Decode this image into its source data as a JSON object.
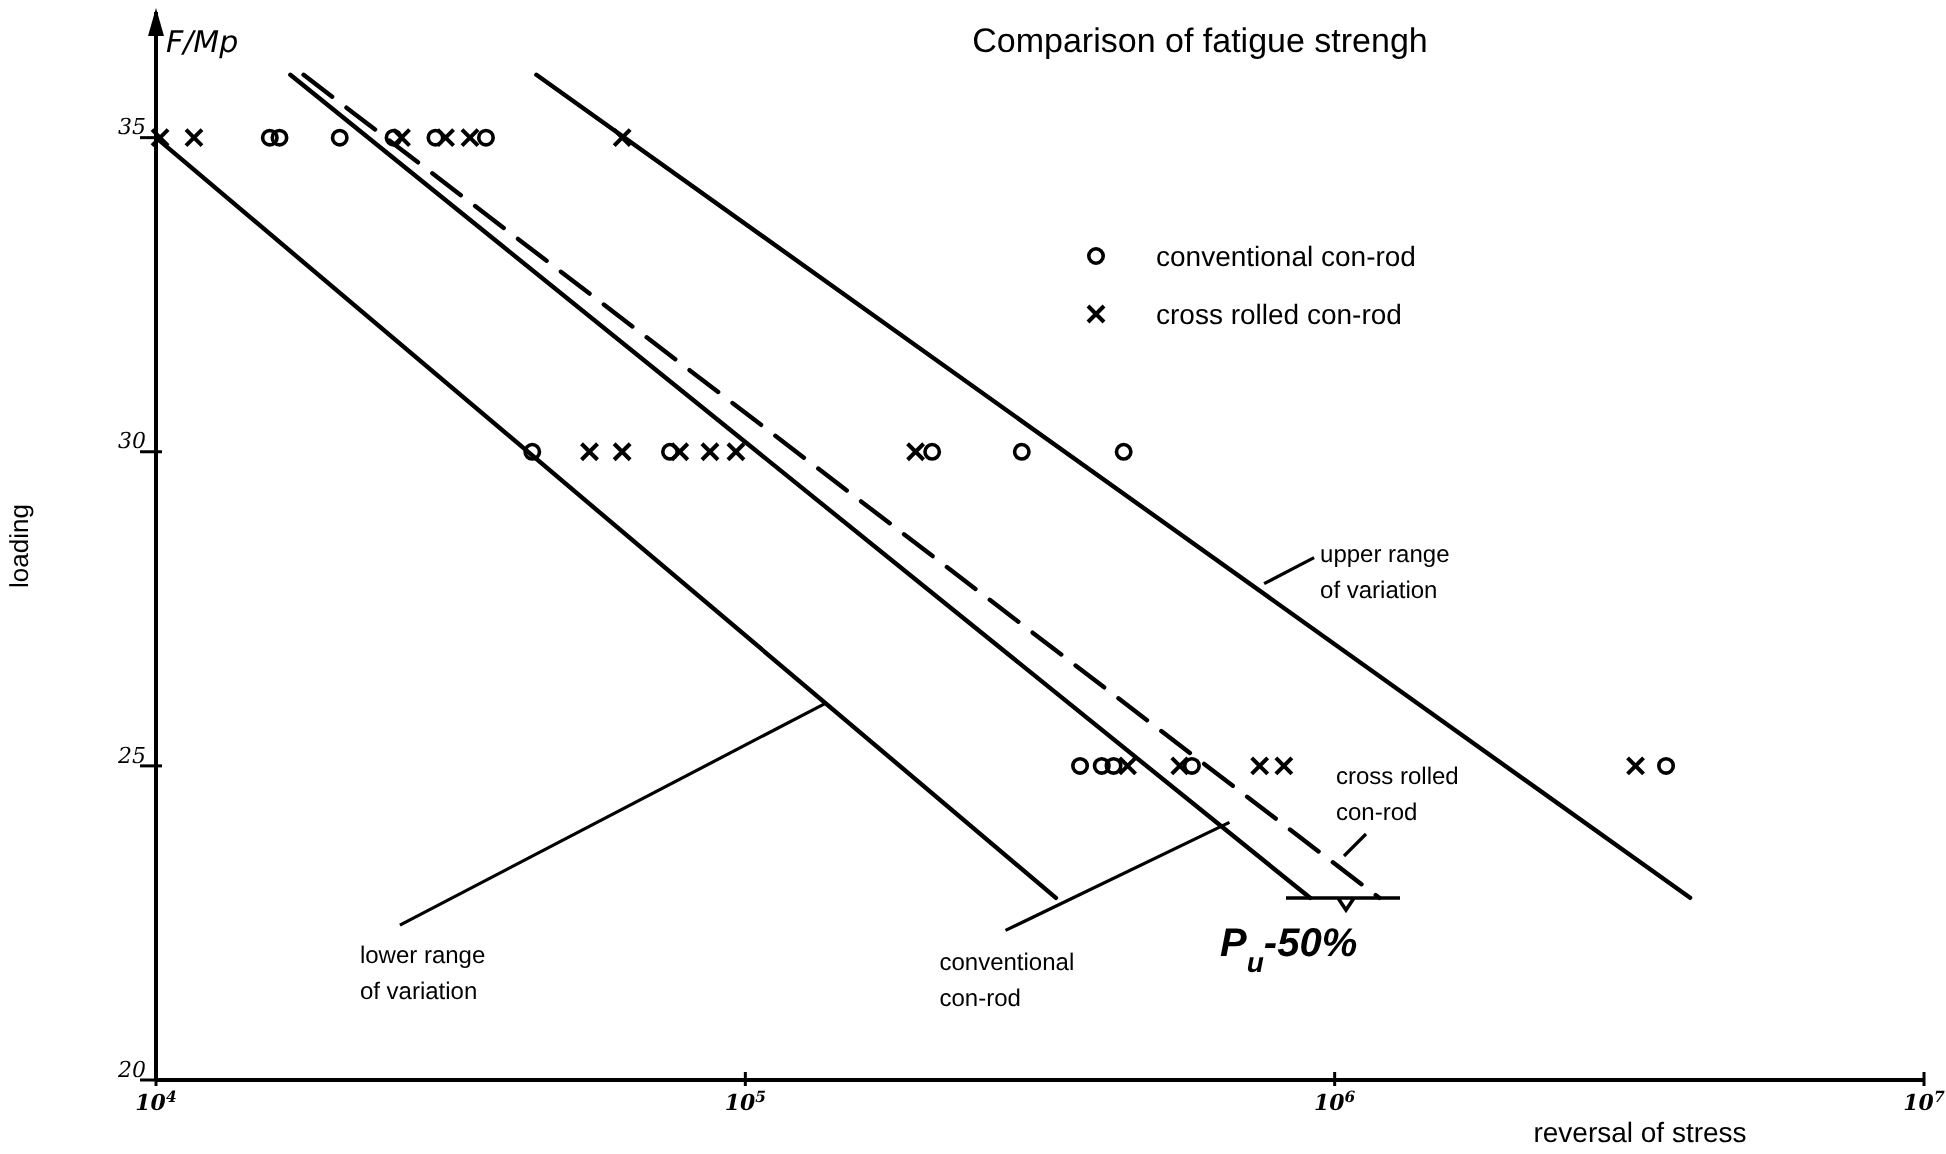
{
  "chart_data": {
    "type": "scatter",
    "title": "Comparison of fatigue strengh",
    "xlabel": "reversal of stress",
    "ylabel": "loading",
    "log": "x",
    "grid": false,
    "legend": "top right",
    "xlim": [
      10000,
      10000000
    ],
    "ylim": [
      20,
      37
    ],
    "xticks": [
      {
        "value": 10000,
        "label": "10$^{4}$"
      },
      {
        "value": 100000,
        "label": "10$^{5}$"
      },
      {
        "value": 1000000,
        "label": "10$^{6}$"
      },
      {
        "value": 10000000,
        "label": "10$^{7}$"
      }
    ],
    "yticks": [
      20,
      25,
      30,
      35
    ],
    "series": [
      {
        "name": "conventional con-rod",
        "color": "#000000",
        "marker": "circle",
        "x": [
          15600,
          16200,
          20500,
          25300,
          29800,
          36300,
          43500,
          74500,
          207500,
          294500,
          438500,
          369800,
          402500,
          421500,
          572500,
          3650000
        ],
        "values": [
          35,
          35,
          35,
          35,
          35,
          35,
          30,
          30,
          30,
          30,
          30,
          25,
          25,
          25,
          25,
          25
        ]
      },
      {
        "name": "cross rolled con-rod",
        "color": "#000000",
        "marker": "cross",
        "x": [
          10160,
          11600,
          26100,
          31000,
          34100,
          61800,
          54400,
          61800,
          77400,
          87100,
          96400,
          194500,
          445300,
          546000,
          746000,
          820000,
          3240000
        ],
        "values": [
          35,
          35,
          35,
          35,
          35,
          35,
          30,
          30,
          30,
          30,
          30,
          30,
          25,
          25,
          25,
          25,
          25
        ]
      },
      {
        "type": "line",
        "color": "#000000",
        "line_style": "solid",
        "x": [
          10000,
          336500
        ],
        "values": [
          35,
          22.9
        ]
      },
      {
        "type": "line",
        "color": "#000000",
        "line_style": "solid",
        "x": [
          16900,
          908000
        ],
        "values": [
          36,
          22.9
        ]
      },
      {
        "type": "line",
        "color": "#000000",
        "line_style": "dashed",
        "x": [
          17800,
          1190000
        ],
        "values": [
          36,
          22.9
        ]
      },
      {
        "type": "line",
        "color": "#000000",
        "line_style": "solid",
        "x": [
          44200,
          4010000
        ],
        "values": [
          36,
          22.9
        ]
      }
    ],
    "annotations": [
      {
        "text": "upper range\nof variation",
        "x": 759000,
        "y": 27.9
      },
      "cross rolled\ncon-rod",
      {
        "text": "lower range\nof variation",
        "x": 137000,
        "y": 26
      },
      {
        "text": "conventional\ncon-rod",
        "x": 663000,
        "y": 24.1
      },
      "P$_{u}$-50%",
      "F/Mp"
    ]
  }
}
